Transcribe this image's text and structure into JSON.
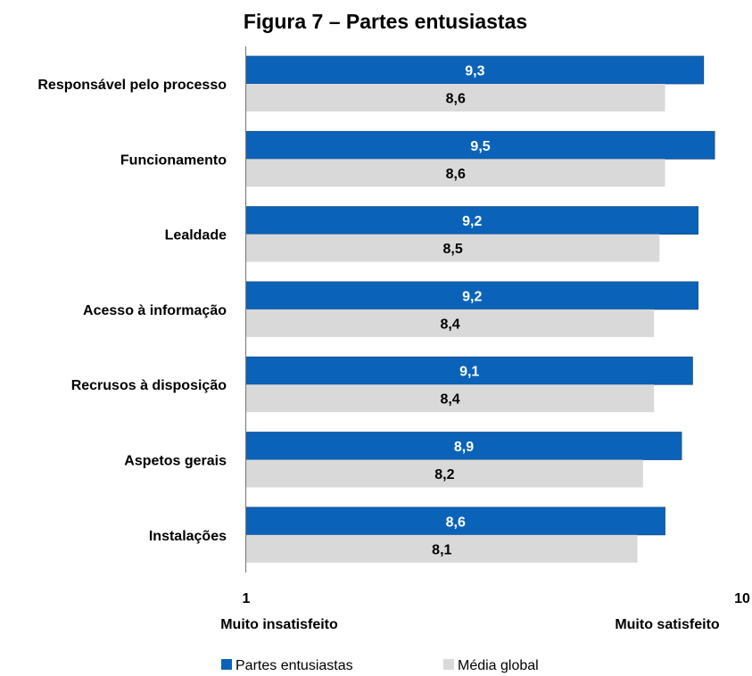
{
  "chart_data": {
    "type": "bar",
    "orientation": "horizontal",
    "title": "Figura 7 – Partes entusiastas",
    "categories": [
      "Responsável pelo processo",
      "Funcionamento",
      "Lealdade",
      "Acesso à informação",
      "Recrusos à disposição",
      "Aspetos gerais",
      "Instalações"
    ],
    "series": [
      {
        "name": "Partes entusiastas",
        "color": "#0a63b8",
        "values": [
          9.3,
          9.5,
          9.2,
          9.2,
          9.1,
          8.9,
          8.6
        ],
        "labels": [
          "9,3",
          "9,5",
          "9,2",
          "9,2",
          "9,1",
          "8,9",
          "8,6"
        ]
      },
      {
        "name": "Média global",
        "color": "#d9d9d9",
        "values": [
          8.6,
          8.6,
          8.5,
          8.4,
          8.4,
          8.2,
          8.1
        ],
        "labels": [
          "8,6",
          "8,6",
          "8,5",
          "8,4",
          "8,4",
          "8,2",
          "8,1"
        ]
      }
    ],
    "xlim": [
      1,
      10
    ],
    "x_ticks": [
      "1",
      "10"
    ],
    "x_min_caption": "Muito insatisfeito",
    "x_max_caption": "Muito satisfeito",
    "grid": false,
    "legend_position": "bottom"
  }
}
